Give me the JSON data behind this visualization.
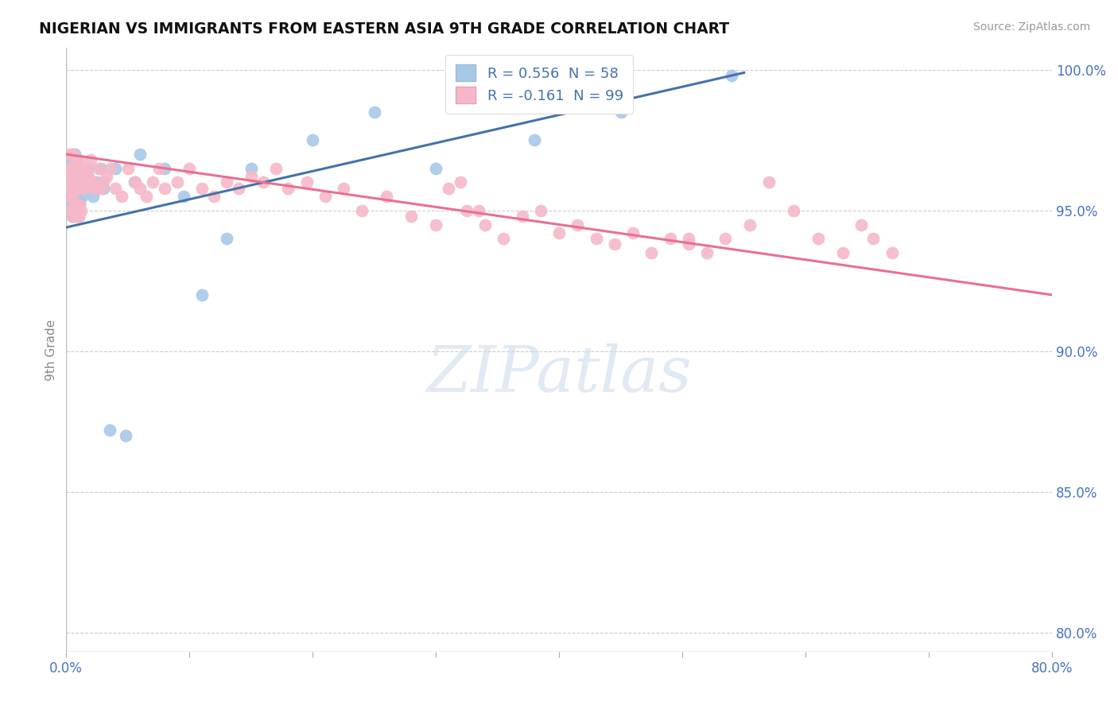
{
  "title": "NIGERIAN VS IMMIGRANTS FROM EASTERN ASIA 9TH GRADE CORRELATION CHART",
  "source": "Source: ZipAtlas.com",
  "ylabel": "9th Grade",
  "xlim": [
    0.0,
    0.8
  ],
  "ylim": [
    0.793,
    1.008
  ],
  "yticks": [
    0.8,
    0.85,
    0.9,
    0.95,
    1.0
  ],
  "ytick_labels": [
    "80.0%",
    "85.0%",
    "90.0%",
    "95.0%",
    "100.0%"
  ],
  "xticks": [
    0.0,
    0.1,
    0.2,
    0.3,
    0.4,
    0.5,
    0.6,
    0.7,
    0.8
  ],
  "xtick_labels": [
    "0.0%",
    "",
    "",
    "",
    "",
    "",
    "",
    "",
    "80.0%"
  ],
  "blue_color": "#A8C8E8",
  "pink_color": "#F5B8C8",
  "blue_line_color": "#4472AA",
  "pink_line_color": "#E87090",
  "tick_color": "#4472C4",
  "grid_color": "#CCCCCC",
  "watermark_text": "ZIPatlas",
  "legend_label_blue": "R = 0.556  N = 58",
  "legend_label_pink": "R = -0.161  N = 99",
  "blue_line_x0": 0.0,
  "blue_line_x1": 0.55,
  "blue_line_y0": 0.944,
  "blue_line_y1": 0.999,
  "pink_line_x0": 0.0,
  "pink_line_x1": 0.8,
  "pink_line_y0": 0.97,
  "pink_line_y1": 0.92,
  "blue_scatter_x": [
    0.001,
    0.002,
    0.002,
    0.003,
    0.003,
    0.003,
    0.004,
    0.004,
    0.004,
    0.004,
    0.005,
    0.005,
    0.005,
    0.005,
    0.006,
    0.006,
    0.006,
    0.007,
    0.007,
    0.007,
    0.007,
    0.008,
    0.008,
    0.008,
    0.009,
    0.009,
    0.01,
    0.01,
    0.011,
    0.011,
    0.012,
    0.013,
    0.013,
    0.014,
    0.015,
    0.016,
    0.018,
    0.02,
    0.022,
    0.025,
    0.028,
    0.03,
    0.035,
    0.04,
    0.048,
    0.055,
    0.06,
    0.08,
    0.095,
    0.11,
    0.13,
    0.15,
    0.2,
    0.25,
    0.3,
    0.38,
    0.45,
    0.54
  ],
  "blue_scatter_y": [
    0.953,
    0.958,
    0.962,
    0.955,
    0.96,
    0.965,
    0.95,
    0.957,
    0.963,
    0.968,
    0.948,
    0.955,
    0.962,
    0.97,
    0.952,
    0.958,
    0.965,
    0.948,
    0.955,
    0.962,
    0.97,
    0.95,
    0.957,
    0.965,
    0.953,
    0.96,
    0.948,
    0.96,
    0.953,
    0.962,
    0.958,
    0.955,
    0.965,
    0.96,
    0.958,
    0.962,
    0.965,
    0.96,
    0.955,
    0.96,
    0.965,
    0.958,
    0.872,
    0.965,
    0.87,
    0.96,
    0.97,
    0.965,
    0.955,
    0.92,
    0.94,
    0.965,
    0.975,
    0.985,
    0.965,
    0.975,
    0.985,
    0.998
  ],
  "pink_scatter_x": [
    0.001,
    0.002,
    0.002,
    0.003,
    0.003,
    0.003,
    0.004,
    0.004,
    0.004,
    0.005,
    0.005,
    0.005,
    0.005,
    0.006,
    0.006,
    0.006,
    0.007,
    0.007,
    0.007,
    0.008,
    0.008,
    0.008,
    0.009,
    0.009,
    0.01,
    0.01,
    0.01,
    0.011,
    0.011,
    0.012,
    0.012,
    0.013,
    0.013,
    0.014,
    0.015,
    0.016,
    0.017,
    0.018,
    0.02,
    0.022,
    0.024,
    0.026,
    0.028,
    0.03,
    0.033,
    0.036,
    0.04,
    0.045,
    0.05,
    0.056,
    0.06,
    0.065,
    0.07,
    0.075,
    0.08,
    0.09,
    0.1,
    0.11,
    0.12,
    0.13,
    0.14,
    0.15,
    0.16,
    0.17,
    0.18,
    0.195,
    0.21,
    0.225,
    0.24,
    0.26,
    0.28,
    0.3,
    0.31,
    0.325,
    0.34,
    0.355,
    0.37,
    0.385,
    0.4,
    0.415,
    0.43,
    0.445,
    0.46,
    0.475,
    0.49,
    0.505,
    0.32,
    0.335,
    0.505,
    0.52,
    0.535,
    0.555,
    0.57,
    0.59,
    0.61,
    0.63,
    0.645,
    0.655,
    0.67
  ],
  "pink_scatter_y": [
    0.96,
    0.965,
    0.958,
    0.955,
    0.962,
    0.97,
    0.95,
    0.958,
    0.965,
    0.948,
    0.955,
    0.963,
    0.97,
    0.952,
    0.958,
    0.965,
    0.948,
    0.958,
    0.965,
    0.952,
    0.96,
    0.968,
    0.95,
    0.958,
    0.948,
    0.958,
    0.968,
    0.952,
    0.96,
    0.95,
    0.96,
    0.958,
    0.965,
    0.962,
    0.958,
    0.965,
    0.96,
    0.962,
    0.968,
    0.96,
    0.958,
    0.965,
    0.958,
    0.96,
    0.962,
    0.965,
    0.958,
    0.955,
    0.965,
    0.96,
    0.958,
    0.955,
    0.96,
    0.965,
    0.958,
    0.96,
    0.965,
    0.958,
    0.955,
    0.96,
    0.958,
    0.962,
    0.96,
    0.965,
    0.958,
    0.96,
    0.955,
    0.958,
    0.95,
    0.955,
    0.948,
    0.945,
    0.958,
    0.95,
    0.945,
    0.94,
    0.948,
    0.95,
    0.942,
    0.945,
    0.94,
    0.938,
    0.942,
    0.935,
    0.94,
    0.938,
    0.96,
    0.95,
    0.94,
    0.935,
    0.94,
    0.945,
    0.96,
    0.95,
    0.94,
    0.935,
    0.945,
    0.94,
    0.935
  ]
}
